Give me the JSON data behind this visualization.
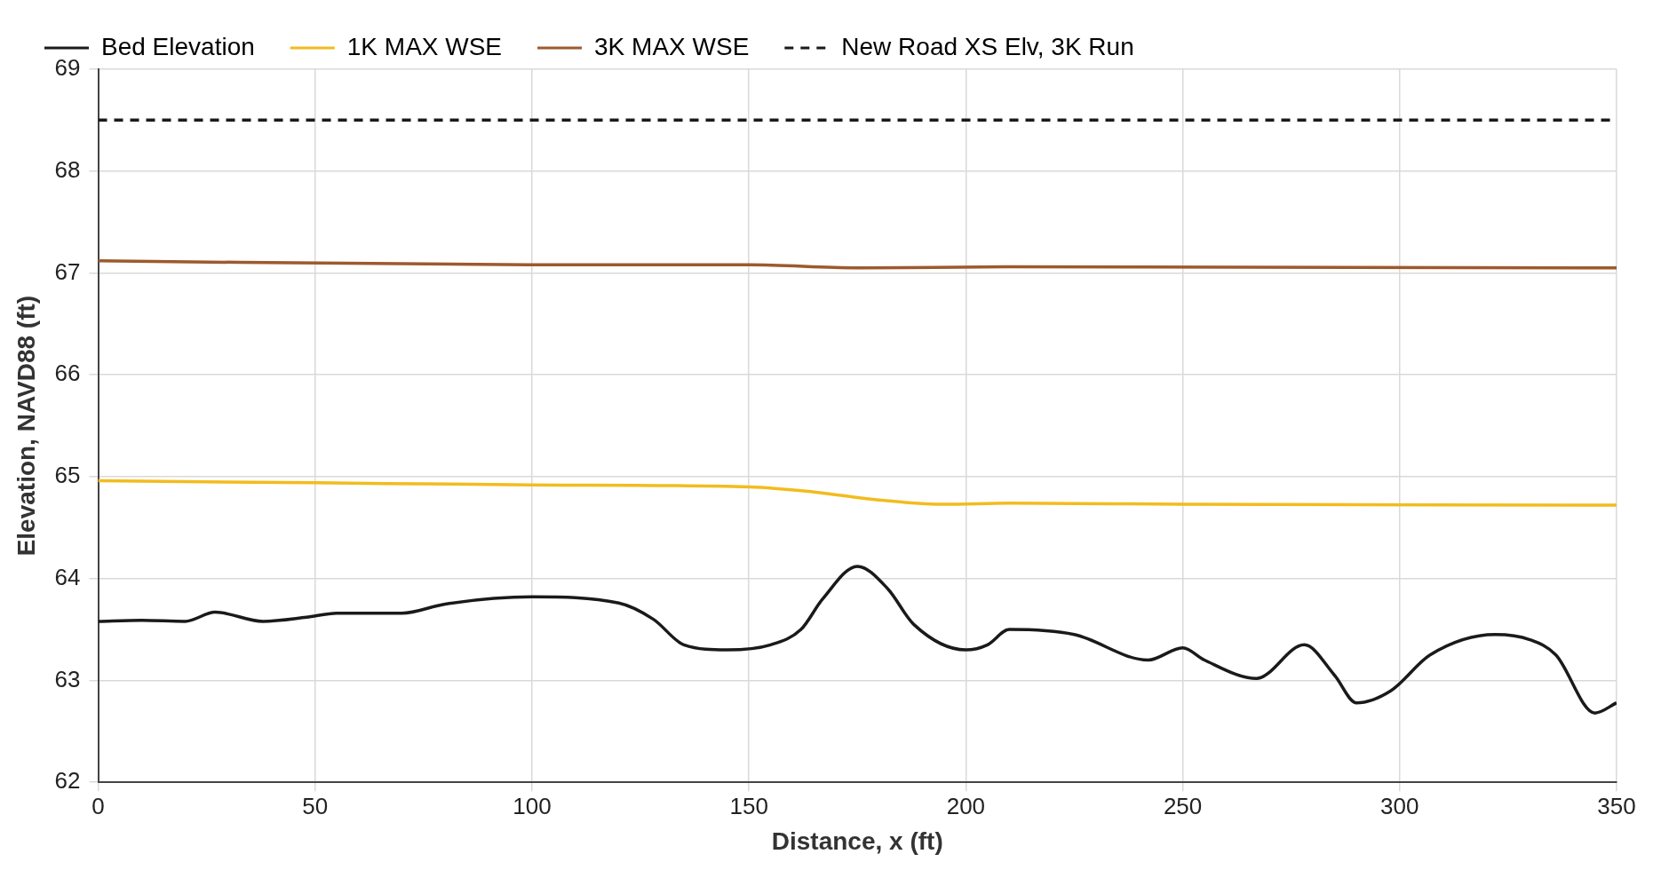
{
  "chart_data": {
    "type": "line",
    "xlabel": "Distance, x (ft)",
    "ylabel": "Elevation, NAVD88 (ft)",
    "xlim": [
      0,
      350
    ],
    "xticks": [
      0,
      50,
      100,
      150,
      200,
      250,
      300,
      350
    ],
    "ylim": [
      62,
      69
    ],
    "yticks": [
      62,
      63,
      64,
      65,
      66,
      67,
      68,
      69
    ],
    "grid": true,
    "legend": "top",
    "marker": "none",
    "series": [
      {
        "name": "Bed Elevation",
        "color": "#1a1a1a",
        "x": [
          0,
          10,
          20,
          27,
          38,
          48,
          55,
          70,
          80,
          100,
          120,
          128,
          135,
          145,
          155,
          162,
          167,
          175,
          182,
          188,
          200,
          205,
          210,
          225,
          242,
          250,
          255,
          267,
          278,
          285,
          290,
          298,
          307,
          322,
          330,
          336,
          345,
          350
        ],
        "values": [
          63.58,
          63.59,
          63.58,
          63.67,
          63.58,
          63.62,
          63.66,
          63.66,
          63.75,
          63.82,
          63.76,
          63.6,
          63.35,
          63.3,
          63.35,
          63.5,
          63.8,
          64.12,
          63.9,
          63.55,
          63.3,
          63.35,
          63.5,
          63.45,
          63.2,
          63.32,
          63.2,
          63.02,
          63.35,
          63.05,
          62.78,
          62.9,
          63.25,
          63.45,
          63.4,
          63.25,
          62.68,
          62.78
        ]
      },
      {
        "name": "1K MAX WSE",
        "color": "#f2bc1e",
        "x": [
          0,
          50,
          100,
          150,
          165,
          180,
          195,
          210,
          250,
          350
        ],
        "values": [
          64.96,
          64.94,
          64.92,
          64.9,
          64.85,
          64.77,
          64.73,
          64.74,
          64.73,
          64.72
        ]
      },
      {
        "name": "3K MAX WSE",
        "color": "#9c5a2e",
        "x": [
          0,
          100,
          150,
          175,
          210,
          350
        ],
        "values": [
          67.12,
          67.08,
          67.08,
          67.05,
          67.06,
          67.05
        ]
      },
      {
        "name": "New Road XS Elv, 3K Run",
        "color": "#1a1a1a",
        "line_style": "dashed",
        "x": [
          0,
          350
        ],
        "values": [
          68.5,
          68.5
        ]
      }
    ]
  }
}
